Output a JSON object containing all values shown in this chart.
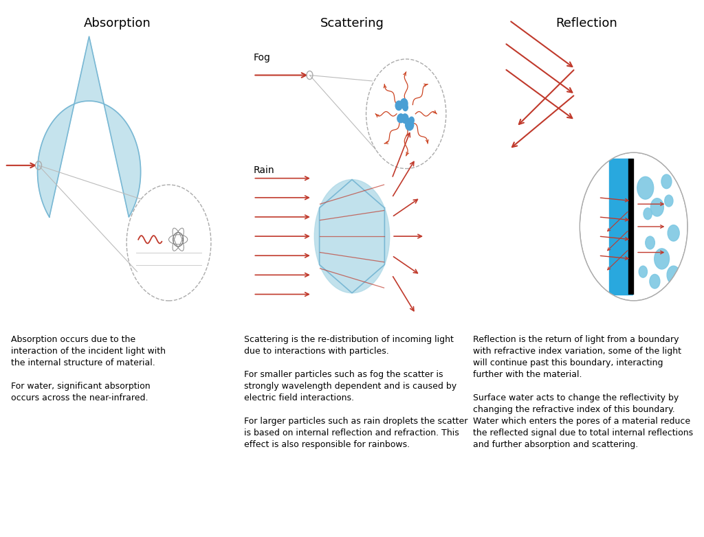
{
  "title_absorption": "Absorption",
  "title_scattering": "Scattering",
  "title_reflection": "Reflection",
  "bg_color": "#ffffff",
  "arrow_color": "#c0392b",
  "water_color": "#add8e6",
  "water_edge": "#7ab8d4",
  "zoom_circle_color": "#aaaaaa",
  "zoom_line_color": "#bbbbbb",
  "text_absorption": "Absorption occurs due to the\ninteraction of the incident light with\nthe internal structure of material.\n\nFor water, significant absorption\noccurs across the near-infrared.",
  "text_scattering": "Scattering is the re-distribution of incoming light\ndue to interactions with particles.\n\nFor smaller particles such as fog the scatter is\nstrongly wavelength dependent and is caused by\nelectric field interactions.\n\nFor larger particles such as rain droplets the scatter\nis based on internal reflection and refraction. This\neffect is also responsible for rainbows.",
  "text_reflection": "Reflection is the return of light from a boundary\nwith refractive index variation, some of the light\nwill continue past this boundary, interacting\nfurther with the material.\n\nSurface water acts to change the reflectivity by\nchanging the refractive index of this boundary.\nWater which enters the pores of a material reduce\nthe reflected signal due to total internal reflections\nand further absorption and scattering.",
  "label_fog": "Fog",
  "label_rain": "Rain",
  "title_fontsize": 13,
  "text_fontsize": 9.0
}
